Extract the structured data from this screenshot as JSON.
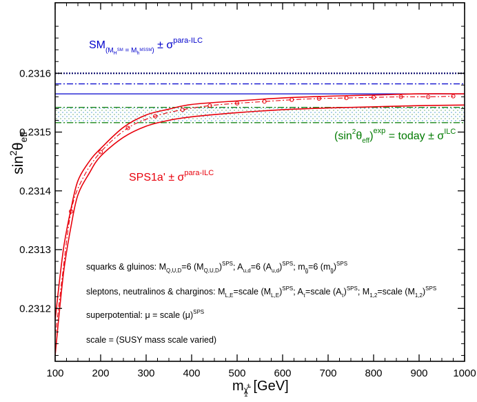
{
  "chart_data": {
    "type": "line",
    "xlabel": {
      "main": "m",
      "sub": "χ̃",
      "subsup": "±",
      "subsub": "1",
      "unit": "[GeV]"
    },
    "ylabel": {
      "prefix": "sin",
      "sup": "2",
      "theta": "θ",
      "sub": "eff"
    },
    "xlim": [
      100,
      1000
    ],
    "ylim": [
      0.23111,
      0.23172
    ],
    "x_ticks": [
      100,
      200,
      300,
      400,
      500,
      600,
      700,
      800,
      900,
      1000
    ],
    "y_ticks": [
      0.2312,
      0.2313,
      0.2314,
      0.2315,
      0.2316
    ],
    "y_tick_labels": [
      "0.2312",
      "0.2313",
      "0.2314",
      "0.2315",
      "0.2316"
    ],
    "reference_lines": {
      "sm_upper": 0.2316,
      "sm_upper_dashdot": 0.231582,
      "sm_central": 0.231565,
      "exp_upper": 0.231542,
      "exp_lower": 0.231516
    },
    "series": [
      {
        "values": [
          [
            100,
            0.23118
          ],
          [
            110,
            0.23125
          ],
          [
            120,
            0.23131
          ],
          [
            135,
            0.23137
          ],
          [
            150,
            0.231417
          ],
          [
            175,
            0.23145
          ],
          [
            200,
            0.231472
          ],
          [
            250,
            0.231508
          ],
          [
            300,
            0.231529
          ],
          [
            350,
            0.231539
          ],
          [
            400,
            0.231547
          ],
          [
            500,
            0.231553
          ],
          [
            600,
            0.231558
          ],
          [
            700,
            0.231561
          ],
          [
            800,
            0.231563
          ],
          [
            900,
            0.231565
          ],
          [
            1000,
            0.231565
          ]
        ]
      },
      {
        "values": [
          [
            100,
            0.23112
          ],
          [
            110,
            0.2312
          ],
          [
            120,
            0.23127
          ],
          [
            135,
            0.23134
          ],
          [
            150,
            0.231393
          ],
          [
            175,
            0.23143
          ],
          [
            200,
            0.231459
          ],
          [
            250,
            0.231491
          ],
          [
            300,
            0.23151
          ],
          [
            350,
            0.23152
          ],
          [
            400,
            0.231526
          ],
          [
            500,
            0.231533
          ],
          [
            600,
            0.231538
          ],
          [
            700,
            0.231541
          ],
          [
            800,
            0.231543
          ],
          [
            900,
            0.231545
          ],
          [
            1000,
            0.231546
          ]
        ]
      },
      {
        "values": [
          [
            100,
            0.23115
          ],
          [
            115,
            0.23125
          ],
          [
            135,
            0.231365
          ],
          [
            160,
            0.23142
          ],
          [
            200,
            0.231466
          ],
          [
            260,
            0.231507
          ],
          [
            320,
            0.231527
          ],
          [
            380,
            0.231538
          ],
          [
            440,
            0.231545
          ],
          [
            500,
            0.231549
          ],
          [
            560,
            0.231552
          ],
          [
            620,
            0.231555
          ],
          [
            680,
            0.231557
          ],
          [
            740,
            0.231558
          ],
          [
            800,
            0.231559
          ],
          [
            860,
            0.23156
          ],
          [
            920,
            0.23156
          ],
          [
            975,
            0.231561
          ]
        ]
      }
    ],
    "markers": [
      [
        135,
        0.231365
      ],
      [
        200,
        0.231466
      ],
      [
        260,
        0.231507
      ],
      [
        320,
        0.231527
      ],
      [
        380,
        0.231538
      ],
      [
        440,
        0.231545
      ],
      [
        500,
        0.231549
      ],
      [
        560,
        0.231552
      ],
      [
        620,
        0.231555
      ],
      [
        680,
        0.231557
      ],
      [
        740,
        0.231558
      ],
      [
        800,
        0.231559
      ],
      [
        860,
        0.23156
      ],
      [
        920,
        0.23156
      ],
      [
        975,
        0.231561
      ]
    ],
    "annotations": {
      "sm": {
        "main": "SM",
        "sub_open": "(M",
        "sub1": "H",
        "sub1sup": "SM",
        "sub_eq": " = M",
        "sub2": "h",
        "sub2sup": "MSSM",
        "sub_close": ")",
        "pm": " ± σ",
        "sup": "para-ILC"
      },
      "exp": {
        "open": "(sin",
        "sup2": "2",
        "theta": "θ",
        "sub": "eff",
        "close": ")",
        "supexp": "exp",
        "rest": " = today ± σ",
        "supilc": "ILC"
      },
      "sps": {
        "main": "SPS1a' ± σ",
        "sup": "para-ILC"
      },
      "line1": {
        "a": "squarks & gluinos: M",
        "a_sub": "Q,U,D",
        "b": "=6 (M",
        "b_sub": "Q,U,D",
        "c": ")",
        "c_sup": "SPS",
        "d": "; A",
        "d_sub": "u,d",
        "e": "=6 (A",
        "e_sub": "u,d",
        "f": ")",
        "f_sup": "SPS",
        "g": "; m",
        "g_sub": "g̃",
        "h": "=6 (m",
        "h_sub": "g̃",
        "i": ")",
        "i_sup": "SPS"
      },
      "line2": {
        "a": "sleptons, neutralinos & charginos: M",
        "a_sub": "L,E",
        "b": "=scale (M",
        "b_sub": "L,E",
        "c": ")",
        "c_sup": "SPS",
        "d": "; A",
        "d_sub": "τ",
        "e": "=scale (A",
        "e_sub": "τ",
        "f": ")",
        "f_sup": "SPS",
        "g": "; M",
        "g_sub": "1,2",
        "h": "=scale (M",
        "h_sub": "1,2",
        "i": ")",
        "i_sup": "SPS"
      },
      "line3": {
        "a": "superpotential:  μ = scale (μ)",
        "a_sup": "SPS"
      },
      "line4": {
        "a": "scale = (SUSY mass scale varied)"
      }
    },
    "colors": {
      "red": "#e8000b",
      "blue": "#0000cc",
      "green": "#007a00",
      "navy": "#000066",
      "hatch_blue": "#3a8fd0",
      "hatch_green": "#5aa05a"
    },
    "grid": false
  }
}
